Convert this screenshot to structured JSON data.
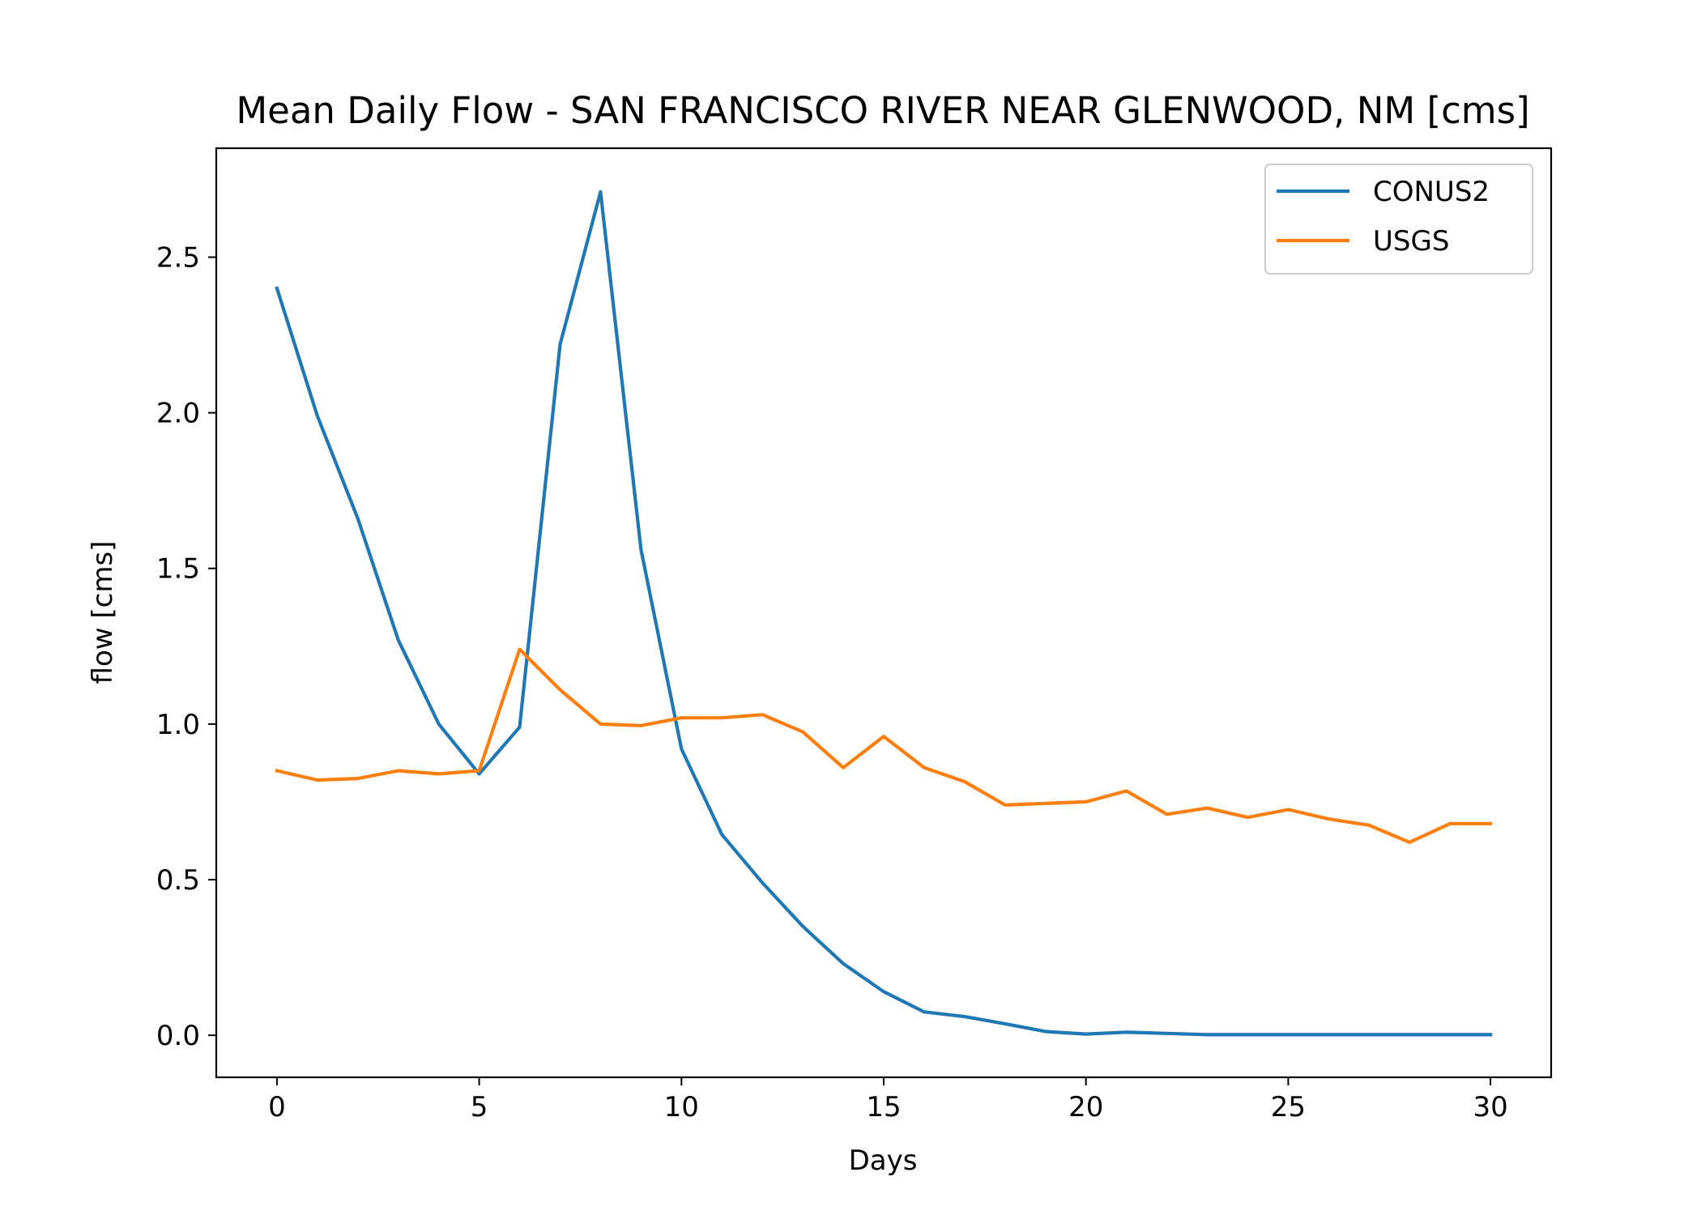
{
  "chart_data": {
    "type": "line",
    "title": "Mean Daily Flow - SAN FRANCISCO RIVER NEAR GLENWOOD, NM [cms]",
    "xlabel": "Days",
    "ylabel": "flow [cms]",
    "xlim": [
      -1.5,
      31.5
    ],
    "ylim": [
      -0.135,
      2.85
    ],
    "xticks": [
      0,
      5,
      10,
      15,
      20,
      25,
      30
    ],
    "yticks": [
      0.0,
      0.5,
      1.0,
      1.5,
      2.0,
      2.5
    ],
    "xtick_labels": [
      "0",
      "5",
      "10",
      "15",
      "20",
      "25",
      "30"
    ],
    "ytick_labels": [
      "0.0",
      "0.5",
      "1.0",
      "1.5",
      "2.0",
      "2.5"
    ],
    "grid": false,
    "legend_position": "top-right",
    "x": [
      0,
      1,
      2,
      3,
      4,
      5,
      6,
      7,
      8,
      9,
      10,
      11,
      12,
      13,
      14,
      15,
      16,
      17,
      18,
      19,
      20,
      21,
      22,
      23,
      24,
      25,
      26,
      27,
      28,
      29,
      30
    ],
    "series": [
      {
        "name": "CONUS2",
        "color": "#1f77b4",
        "values": [
          2.4,
          1.99,
          1.66,
          1.27,
          1.0,
          0.84,
          0.99,
          2.22,
          2.71,
          1.56,
          0.92,
          0.645,
          0.49,
          0.35,
          0.23,
          0.14,
          0.075,
          0.06,
          0.037,
          0.012,
          0.004,
          0.01,
          0.006,
          0.002,
          0.002,
          0.002,
          0.002,
          0.002,
          0.002,
          0.002,
          0.002
        ]
      },
      {
        "name": "USGS",
        "color": "#ff7f0e",
        "values": [
          0.85,
          0.82,
          0.825,
          0.85,
          0.84,
          0.85,
          1.24,
          1.11,
          1.0,
          0.995,
          1.02,
          1.02,
          1.03,
          0.975,
          0.86,
          0.96,
          0.86,
          0.815,
          0.74,
          0.745,
          0.75,
          0.785,
          0.71,
          0.73,
          0.7,
          0.725,
          0.695,
          0.675,
          0.62,
          0.68,
          0.68
        ]
      }
    ]
  }
}
